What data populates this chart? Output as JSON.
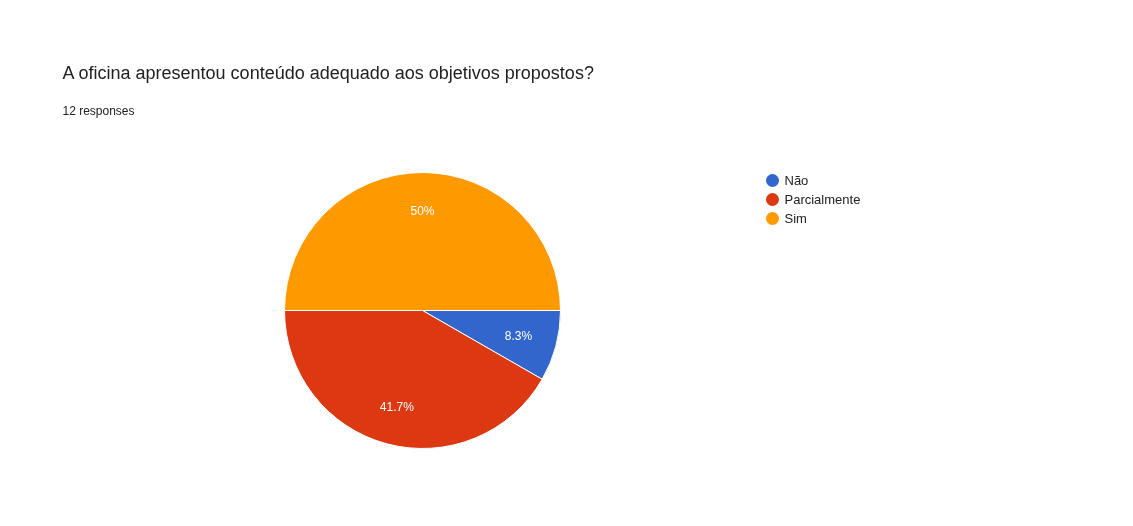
{
  "chart_data": {
    "type": "pie",
    "title": "A oficina apresentou conteúdo adequado aos objetivos propostos?",
    "subtitle": "12 responses",
    "categories": [
      "Não",
      "Parcialmente",
      "Sim"
    ],
    "values": [
      8.3,
      41.7,
      50
    ],
    "value_labels": [
      "8.3%",
      "41.7%",
      "50%"
    ],
    "colors": [
      "#3366cc",
      "#dc3912",
      "#ff9900"
    ],
    "legend": "right"
  }
}
